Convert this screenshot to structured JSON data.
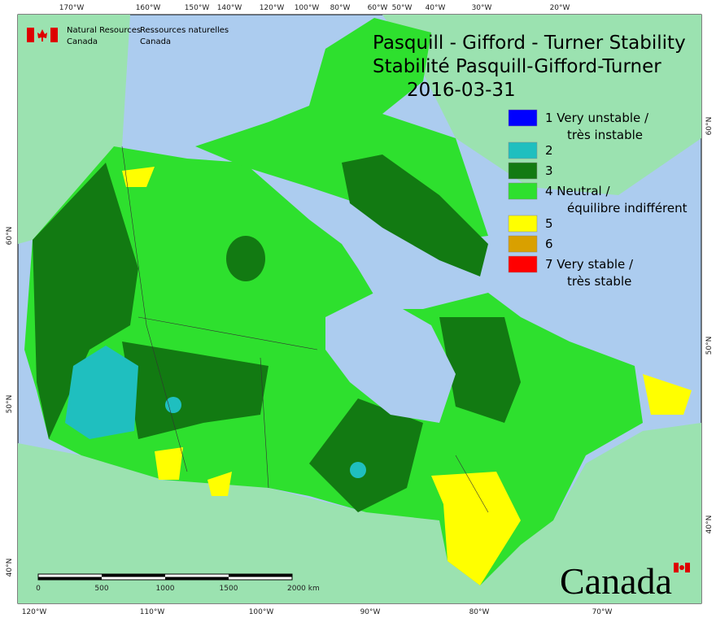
{
  "header": {
    "agency_en": [
      "Natural Resources",
      "Canada"
    ],
    "agency_fr": [
      "Ressources naturelles",
      "Canada"
    ]
  },
  "title": [
    "Pasquill - Gifford - Turner Stability",
    "Stabilité Pasquill-Gifford-Turner",
    "2016-03-31"
  ],
  "legend": [
    {
      "label": [
        "1 Very unstable /",
        "très instable"
      ],
      "color": "#0000ff"
    },
    {
      "label": [
        "2"
      ],
      "color": "#1fbfbf"
    },
    {
      "label": [
        "3"
      ],
      "color": "#127a12"
    },
    {
      "label": [
        "4 Neutral /",
        "équilibre indifférent"
      ],
      "color": "#2ee02e"
    },
    {
      "label": [
        "5"
      ],
      "color": "#ffff00"
    },
    {
      "label": [
        "6"
      ],
      "color": "#d9a000"
    },
    {
      "label": [
        "7 Very stable /",
        "très stable"
      ],
      "color": "#ff0000"
    }
  ],
  "top_axis": [
    "170°W",
    "160°W",
    "150°W",
    "140°W",
    "120°W",
    "100°W",
    "80°W",
    "60°W",
    "50°W",
    "40°W",
    "30°W",
    "20°W"
  ],
  "bottom_axis": [
    "120°W",
    "110°W",
    "100°W",
    "90°W",
    "80°W",
    "70°W"
  ],
  "left_axis": [
    "60°N",
    "50°N",
    "40°N"
  ],
  "right_axis": [
    "60°N",
    "50°N",
    "40°N"
  ],
  "scale_bar": [
    "0",
    "500",
    "1000",
    "1500",
    "2000 km"
  ],
  "wordmark": "Canada"
}
